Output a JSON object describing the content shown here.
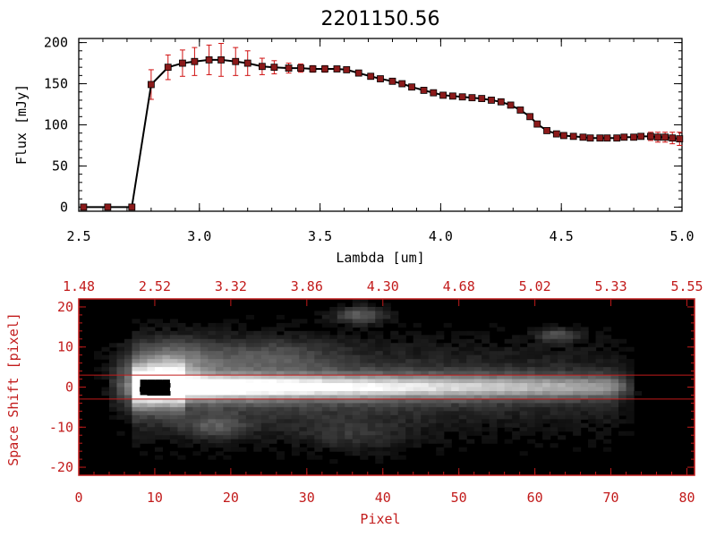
{
  "chart_data": [
    {
      "type": "line",
      "title": "2201150.56",
      "xlabel": "Lambda [um]",
      "ylabel": "Flux [mJy]",
      "xlim": [
        2.5,
        5.0
      ],
      "ylim": [
        -5,
        205
      ],
      "x_ticks": [
        "2.5",
        "3.0",
        "3.5",
        "4.0",
        "4.5",
        "5.0"
      ],
      "y_ticks": [
        "0",
        "50",
        "100",
        "150",
        "200"
      ],
      "series": [
        {
          "color": "#000000",
          "marker_color": "#8b1a1a",
          "errorbar_color": "#d01010",
          "x": [
            2.52,
            2.62,
            2.72,
            2.8,
            2.87,
            2.93,
            2.98,
            3.04,
            3.09,
            3.15,
            3.2,
            3.26,
            3.31,
            3.37,
            3.42,
            3.47,
            3.52,
            3.57,
            3.61,
            3.66,
            3.71,
            3.75,
            3.8,
            3.84,
            3.88,
            3.93,
            3.97,
            4.01,
            4.05,
            4.09,
            4.13,
            4.17,
            4.21,
            4.25,
            4.29,
            4.33,
            4.37,
            4.4,
            4.44,
            4.48,
            4.51,
            4.55,
            4.59,
            4.62,
            4.66,
            4.69,
            4.73,
            4.76,
            4.8,
            4.83,
            4.87,
            4.9,
            4.93,
            4.96,
            4.99
          ],
          "y": [
            0,
            0,
            0,
            149,
            170,
            175,
            177,
            179,
            179,
            177,
            175,
            171,
            170,
            169,
            169,
            168,
            168,
            168,
            167,
            163,
            159,
            156,
            153,
            150,
            146,
            142,
            139,
            136,
            135,
            134,
            133,
            132,
            130,
            128,
            124,
            118,
            110,
            101,
            93,
            89,
            87,
            86,
            85,
            84,
            84,
            84,
            84,
            85,
            85,
            86,
            86,
            85,
            85,
            84,
            83
          ],
          "err": [
            0,
            0,
            0,
            18,
            15,
            16,
            17,
            18,
            20,
            17,
            15,
            10,
            8,
            6,
            5,
            4,
            4,
            3,
            3,
            3,
            3,
            3,
            3,
            3,
            3,
            3,
            3,
            3,
            3,
            3,
            3,
            3,
            3,
            3,
            3,
            3,
            3,
            3,
            3,
            3,
            3,
            3,
            3,
            3,
            3,
            3,
            3,
            3,
            3,
            3,
            5,
            6,
            6,
            7,
            8
          ]
        }
      ]
    },
    {
      "type": "heatmap",
      "xlabel": "Pixel",
      "ylabel": "Space Shift [pixel]",
      "xlim": [
        0,
        81
      ],
      "ylim": [
        -22,
        22
      ],
      "x_ticks": [
        "0",
        "10",
        "20",
        "30",
        "40",
        "50",
        "60",
        "70",
        "80"
      ],
      "y_ticks": [
        "-20",
        "-10",
        "0",
        "10",
        "20"
      ],
      "top_x_ticks": [
        "1.48",
        "2.52",
        "3.32",
        "3.86",
        "4.30",
        "4.68",
        "5.02",
        "5.33",
        "5.55"
      ],
      "top_x_positions": [
        0,
        10,
        20,
        30,
        40,
        50,
        60,
        70,
        80
      ],
      "colormap": "grayscale",
      "axis_color": "#c21b1b",
      "extraction_window": [
        -3,
        3
      ]
    }
  ],
  "colors": {
    "axis_red": "#c21b1b",
    "errorbar_red": "#d01010",
    "marker": "#8b1a1a"
  }
}
